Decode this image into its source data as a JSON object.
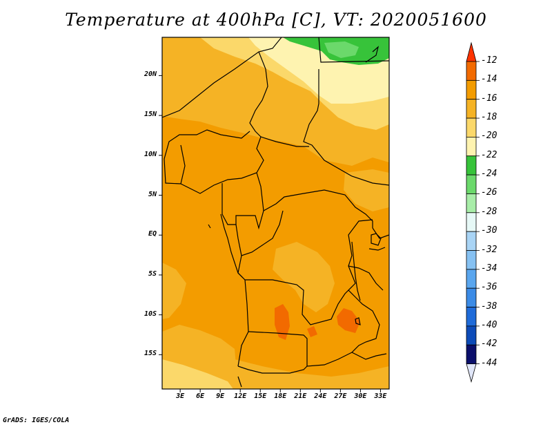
{
  "title": "Temperature at 400hPa [C], VT: 2020051600",
  "footer": "GrADS: IGES/COLA",
  "lat_ticks": [
    {
      "label": "20N",
      "lat": 20
    },
    {
      "label": "15N",
      "lat": 15
    },
    {
      "label": "10N",
      "lat": 10
    },
    {
      "label": "5N",
      "lat": 5
    },
    {
      "label": "EQ",
      "lat": 0
    },
    {
      "label": "5S",
      "lat": -5
    },
    {
      "label": "10S",
      "lat": -10
    },
    {
      "label": "15S",
      "lat": -15
    }
  ],
  "lon_ticks": [
    {
      "label": "3E",
      "lon": 3
    },
    {
      "label": "6E",
      "lon": 6
    },
    {
      "label": "9E",
      "lon": 9
    },
    {
      "label": "12E",
      "lon": 12
    },
    {
      "label": "15E",
      "lon": 15
    },
    {
      "label": "18E",
      "lon": 18
    },
    {
      "label": "21E",
      "lon": 21
    },
    {
      "label": "24E",
      "lon": 24
    },
    {
      "label": "27E",
      "lon": 27
    },
    {
      "label": "30E",
      "lon": 30
    },
    {
      "label": "33E",
      "lon": 33
    }
  ],
  "colorbar": {
    "labels": [
      "-12",
      "-14",
      "-16",
      "-18",
      "-20",
      "-22",
      "-24",
      "-26",
      "-28",
      "-30",
      "-32",
      "-34",
      "-36",
      "-38",
      "-40",
      "-42",
      "-44"
    ],
    "colors": [
      "#ff3300",
      "#f26a00",
      "#f39c00",
      "#f5b325",
      "#fbd86a",
      "#fef3b0",
      "#37c33a",
      "#6bd96b",
      "#a8eda8",
      "#e6f8f6",
      "#a9d4f5",
      "#86c1f2",
      "#5aa6ee",
      "#3b8be6",
      "#1f6bd9",
      "#0d4bb8",
      "#0b0f6b",
      "#e0e6f8"
    ]
  }
}
